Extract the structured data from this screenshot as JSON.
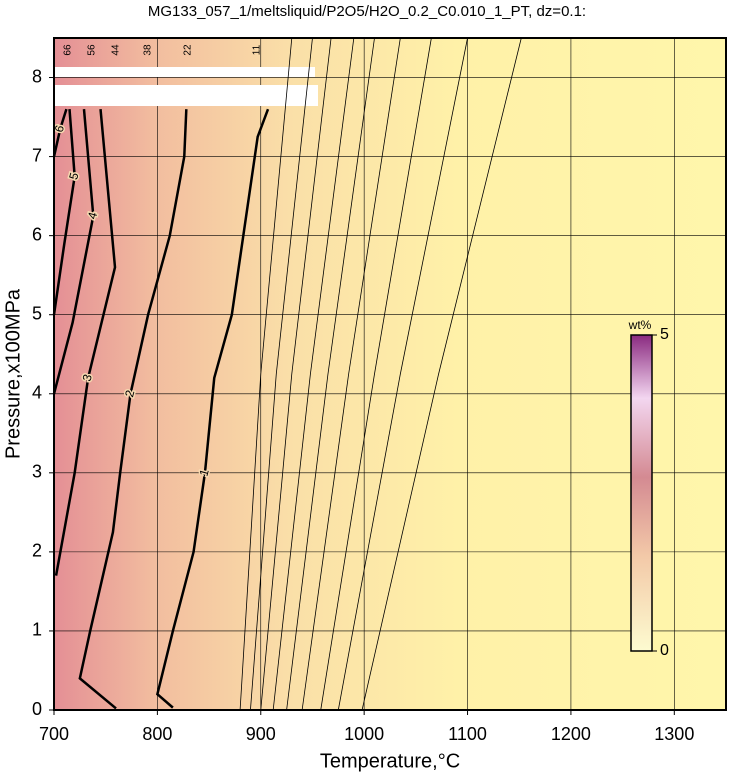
{
  "chart_data": {
    "type": "contour",
    "title": "MG133_057_1/meltsliquid/P2O5/H2O_0.2_C0.010_1_PT, dz=0.1:",
    "x_label": "Temperature,°C",
    "y_label": "Pressure,x100MPa",
    "xlim": [
      700,
      1350
    ],
    "xticks": [
      700,
      800,
      900,
      1000,
      1100,
      1200,
      1300
    ],
    "ylim": [
      0,
      8.5
    ],
    "yticks": [
      0,
      1,
      2,
      3,
      4,
      5,
      6,
      7,
      8
    ],
    "grid": true,
    "series": [
      {
        "level": 1,
        "x": [
          815,
          800,
          815,
          835,
          846,
          855,
          872,
          897,
          907
        ],
        "values": [
          0.03,
          0.2,
          1,
          2,
          3,
          4.2,
          5,
          7.25,
          7.6
        ]
      },
      {
        "level": 2,
        "x": [
          760,
          725,
          735,
          757,
          764,
          774,
          791,
          812,
          826,
          828
        ],
        "values": [
          0.02,
          0.4,
          1,
          2.25,
          3,
          4,
          5,
          6,
          7,
          7.6
        ]
      },
      {
        "level": 3,
        "x": [
          702,
          720,
          733,
          759,
          745
        ],
        "values": [
          1.7,
          3,
          4.2,
          5.6,
          7.6
        ]
      },
      {
        "level": 4,
        "x": [
          700,
          718,
          738,
          729
        ],
        "values": [
          4,
          4.9,
          6.25,
          7.6
        ]
      },
      {
        "level": 5,
        "x": [
          700,
          710,
          720,
          715
        ],
        "values": [
          5,
          5.9,
          6.75,
          7.6
        ]
      },
      {
        "level": 6,
        "x": [
          700,
          706,
          712
        ],
        "values": [
          7,
          7.35,
          7.6
        ]
      },
      {
        "level": 0.9,
        "x": [
          880,
          900,
          930
        ],
        "values": [
          0,
          4.25,
          8.5
        ]
      },
      {
        "level": 0.8,
        "x": [
          890,
          915,
          950
        ],
        "values": [
          0,
          4.25,
          8.5
        ]
      },
      {
        "level": 0.7,
        "x": [
          900,
          930,
          968
        ],
        "values": [
          0,
          4.25,
          8.5
        ]
      },
      {
        "level": 0.6,
        "x": [
          912,
          948,
          990
        ],
        "values": [
          0,
          4.25,
          8.5
        ]
      },
      {
        "level": 0.5,
        "x": [
          925,
          965,
          1010
        ],
        "values": [
          0,
          4.25,
          8.5
        ]
      },
      {
        "level": 0.4,
        "x": [
          940,
          985,
          1035
        ],
        "values": [
          0,
          4.25,
          8.5
        ]
      },
      {
        "level": 0.3,
        "x": [
          958,
          1010,
          1065
        ],
        "values": [
          0,
          4.25,
          8.5
        ]
      },
      {
        "level": 0.2,
        "x": [
          975,
          1035,
          1100
        ],
        "values": [
          0,
          4.25,
          8.5
        ]
      },
      {
        "level": 0.1,
        "x": [
          998,
          1072,
          1152
        ],
        "values": [
          0,
          4.25,
          8.5
        ]
      }
    ],
    "top_labels": [
      "66",
      "56",
      "44",
      "38",
      "22",
      "11"
    ],
    "colorbar": {
      "label": "wt%",
      "lim": [
        0,
        5
      ],
      "ticks": [
        0,
        5
      ]
    }
  }
}
